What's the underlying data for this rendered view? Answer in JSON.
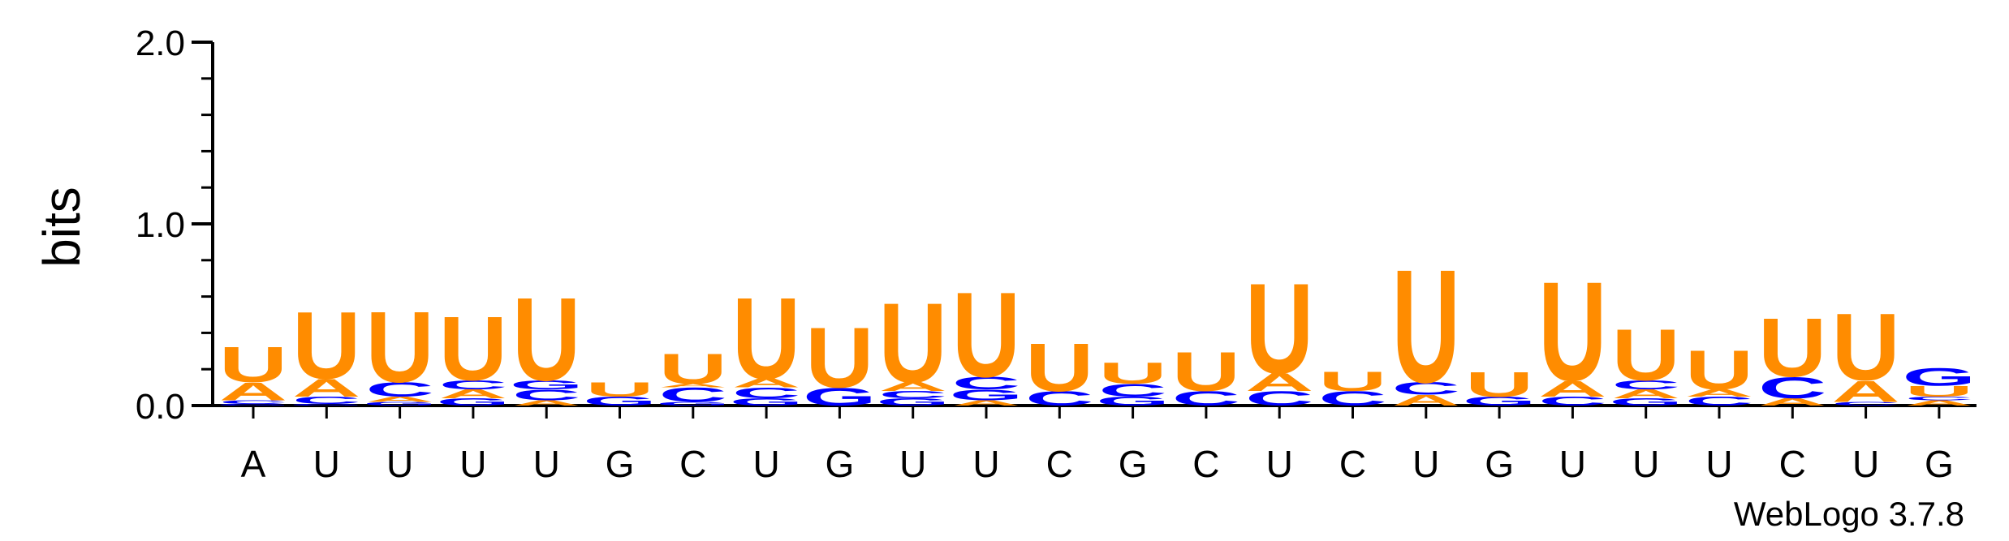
{
  "chart_data": {
    "type": "sequence-logo",
    "ylabel": "bits",
    "ylim": [
      0,
      2.0
    ],
    "y_ticks": [
      "0.0",
      "1.0",
      "2.0"
    ],
    "y_tick_values": [
      0,
      1,
      2
    ],
    "credit": "WebLogo 3.7.8",
    "colors": {
      "A": "#ff8c00",
      "U": "#ff8c00",
      "C": "#0000ff",
      "G": "#0000ff",
      "axis": "#000000"
    },
    "positions": [
      {
        "label": "A",
        "stack": [
          [
            "G",
            0.01
          ],
          [
            "C",
            0.02
          ],
          [
            "A",
            0.1
          ],
          [
            "U",
            0.2
          ]
        ]
      },
      {
        "label": "U",
        "stack": [
          [
            "G",
            0.01
          ],
          [
            "C",
            0.04
          ],
          [
            "A",
            0.1
          ],
          [
            "U",
            0.38
          ]
        ]
      },
      {
        "label": "U",
        "stack": [
          [
            "G",
            0.02
          ],
          [
            "A",
            0.03
          ],
          [
            "C",
            0.08
          ],
          [
            "U",
            0.4
          ]
        ]
      },
      {
        "label": "U",
        "stack": [
          [
            "G",
            0.04
          ],
          [
            "A",
            0.05
          ],
          [
            "C",
            0.05
          ],
          [
            "U",
            0.36
          ]
        ]
      },
      {
        "label": "U",
        "stack": [
          [
            "A",
            0.03
          ],
          [
            "C",
            0.06
          ],
          [
            "G",
            0.05
          ],
          [
            "U",
            0.47
          ]
        ]
      },
      {
        "label": "G",
        "stack": [
          [
            "G",
            0.05
          ],
          [
            "U",
            0.08
          ]
        ]
      },
      {
        "label": "C",
        "stack": [
          [
            "G",
            0.02
          ],
          [
            "C",
            0.08
          ],
          [
            "A",
            0.02
          ],
          [
            "U",
            0.17
          ]
        ]
      },
      {
        "label": "U",
        "stack": [
          [
            "G",
            0.04
          ],
          [
            "C",
            0.06
          ],
          [
            "A",
            0.05
          ],
          [
            "U",
            0.46
          ]
        ]
      },
      {
        "label": "G",
        "stack": [
          [
            "G",
            0.1
          ],
          [
            "U",
            0.34
          ]
        ]
      },
      {
        "label": "U",
        "stack": [
          [
            "G",
            0.04
          ],
          [
            "C",
            0.04
          ],
          [
            "A",
            0.05
          ],
          [
            "U",
            0.45
          ]
        ]
      },
      {
        "label": "U",
        "stack": [
          [
            "A",
            0.03
          ],
          [
            "G",
            0.06
          ],
          [
            "C",
            0.07
          ],
          [
            "U",
            0.48
          ]
        ]
      },
      {
        "label": "C",
        "stack": [
          [
            "C",
            0.08
          ],
          [
            "U",
            0.27
          ]
        ]
      },
      {
        "label": "G",
        "stack": [
          [
            "G",
            0.05
          ],
          [
            "C",
            0.07
          ],
          [
            "U",
            0.12
          ]
        ]
      },
      {
        "label": "C",
        "stack": [
          [
            "C",
            0.08
          ],
          [
            "U",
            0.22
          ]
        ]
      },
      {
        "label": "U",
        "stack": [
          [
            "C",
            0.08
          ],
          [
            "A",
            0.1
          ],
          [
            "U",
            0.51
          ]
        ]
      },
      {
        "label": "C",
        "stack": [
          [
            "C",
            0.08
          ],
          [
            "U",
            0.11
          ]
        ]
      },
      {
        "label": "U",
        "stack": [
          [
            "A",
            0.06
          ],
          [
            "C",
            0.07
          ],
          [
            "U",
            0.64
          ]
        ]
      },
      {
        "label": "G",
        "stack": [
          [
            "G",
            0.05
          ],
          [
            "U",
            0.14
          ]
        ]
      },
      {
        "label": "U",
        "stack": [
          [
            "C",
            0.05
          ],
          [
            "A",
            0.09
          ],
          [
            "U",
            0.56
          ]
        ]
      },
      {
        "label": "U",
        "stack": [
          [
            "G",
            0.04
          ],
          [
            "A",
            0.05
          ],
          [
            "C",
            0.05
          ],
          [
            "U",
            0.29
          ]
        ]
      },
      {
        "label": "U",
        "stack": [
          [
            "C",
            0.05
          ],
          [
            "A",
            0.04
          ],
          [
            "U",
            0.22
          ]
        ]
      },
      {
        "label": "C",
        "stack": [
          [
            "A",
            0.04
          ],
          [
            "C",
            0.12
          ],
          [
            "U",
            0.33
          ]
        ]
      },
      {
        "label": "U",
        "stack": [
          [
            "C",
            0.02
          ],
          [
            "A",
            0.12
          ],
          [
            "U",
            0.38
          ]
        ]
      },
      {
        "label": "G",
        "stack": [
          [
            "A",
            0.03
          ],
          [
            "C",
            0.02
          ],
          [
            "U",
            0.06
          ],
          [
            "G",
            0.1
          ]
        ]
      }
    ]
  }
}
